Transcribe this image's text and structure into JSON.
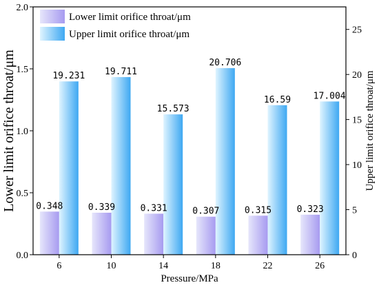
{
  "chart_data": {
    "type": "bar",
    "xlabel": "Pressure/MPa",
    "ylabel_left": "Lower limit orifice throat/μm",
    "ylabel_right": "Upper limit orifice throat/μm",
    "categories": [
      "6",
      "10",
      "14",
      "18",
      "22",
      "26"
    ],
    "series": [
      {
        "name": "Lower limit orifice throat/μm",
        "axis": "left",
        "values": [
          0.348,
          0.339,
          0.331,
          0.307,
          0.315,
          0.323
        ],
        "labels": [
          "0.348",
          "0.339",
          "0.331",
          "0.307",
          "0.315",
          "0.323"
        ]
      },
      {
        "name": "Upper limit orifice throat/μm",
        "axis": "right",
        "values": [
          19.231,
          19.711,
          15.573,
          20.706,
          16.59,
          17.004
        ],
        "labels": [
          "19.231",
          "19.711",
          "15.573",
          "20.706",
          "16.59",
          "17.004"
        ]
      }
    ],
    "ylim_left": [
      0,
      2.0
    ],
    "yticks_left": [
      "0.0",
      "0.5",
      "1.0",
      "1.5",
      "2.0"
    ],
    "ylim_right": [
      0,
      27.5
    ],
    "yticks_right": [
      "0",
      "5",
      "10",
      "15",
      "20",
      "25"
    ],
    "legend_position": "top-left",
    "grid": false,
    "colors": {
      "lower_light": "#e6e6fb",
      "lower_dark": "#a79bf0",
      "upper_light": "#dff4ff",
      "upper_dark": "#3ea8f2"
    }
  }
}
